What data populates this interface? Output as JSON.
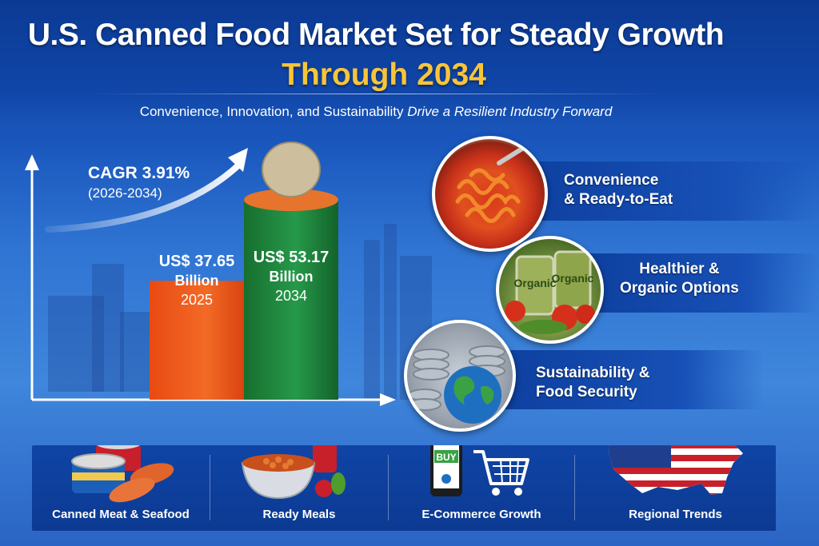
{
  "header": {
    "title_line1": "U.S. Canned Food Market Set for Steady Growth",
    "title_line2": "Through 2034",
    "subtitle_plain": "Convenience, Innovation, and Sustainability ",
    "subtitle_italic": "Drive a Resilient Industry Forward"
  },
  "chart_data": {
    "type": "bar",
    "categories": [
      "2025",
      "2034"
    ],
    "values": [
      37.65,
      53.17
    ],
    "value_labels": [
      {
        "line1": "US$ 37.65",
        "line2": "Billion",
        "line3": "2025"
      },
      {
        "line1": "US$ 53.17",
        "line2": "Billion",
        "line3": "2034"
      }
    ],
    "annotation": {
      "cagr": "CAGR 3.91%",
      "period": "(2026-2034)"
    },
    "colors": [
      "#f05a1c",
      "#1f8a3a"
    ]
  },
  "features": [
    {
      "label_line1": "Convenience",
      "label_line2": "& Ready-to-Eat",
      "icon": "pasta-bowl-icon"
    },
    {
      "label_line1": "Healthier &",
      "label_line2": "Organic Options",
      "icon": "organic-cans-icon",
      "can_text": "Organic"
    },
    {
      "label_line1": "Sustainability &",
      "label_line2": "Food Security",
      "icon": "globe-cans-icon"
    }
  ],
  "categories_bar": [
    {
      "label": "Canned Meat & Seafood",
      "icon": "canned-meat-icon"
    },
    {
      "label": "Ready Meals",
      "icon": "ready-meal-bowl-icon"
    },
    {
      "label": "E-Commerce Growth",
      "icon": "shopping-cart-icon",
      "phone_text": "BUY"
    },
    {
      "label": "Regional Trends",
      "icon": "us-flag-map-icon"
    }
  ],
  "colors": {
    "title": "#ffffff",
    "accent_gold": "#f7c53a",
    "bar_2025": "#f05a1c",
    "bar_2034": "#1f8a3a",
    "panel_blue": "#0d3f9e"
  }
}
